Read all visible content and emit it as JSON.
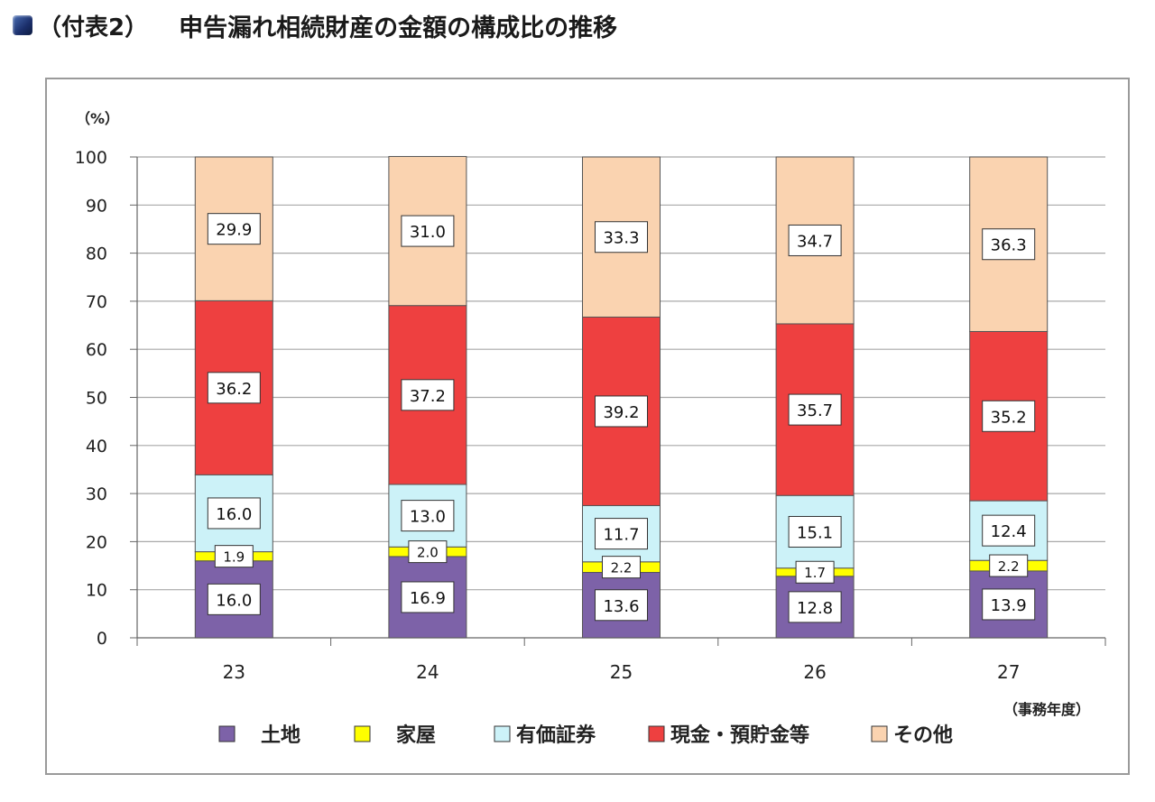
{
  "title": {
    "prefix": "（付表2）",
    "text": "申告漏れ相続財産の金額の構成比の推移"
  },
  "chart_data": {
    "type": "bar",
    "stacked": true,
    "title": "申告漏れ相続財産の金額の構成比の推移",
    "ylabel": "（%）",
    "xlabel": "（事務年度）",
    "ylim": [
      0,
      100
    ],
    "yticks": [
      0,
      10,
      20,
      30,
      40,
      50,
      60,
      70,
      80,
      90,
      100
    ],
    "grid": true,
    "legend_position": "bottom",
    "categories": [
      "23",
      "24",
      "25",
      "26",
      "27"
    ],
    "series": [
      {
        "name": "土地",
        "color": "#7d62a8",
        "values": [
          16.0,
          16.9,
          13.6,
          12.8,
          13.9
        ],
        "labels": [
          "16.0",
          "16.9",
          "13.6",
          "12.8",
          "13.9"
        ]
      },
      {
        "name": "家屋",
        "color": "#ffff00",
        "values": [
          1.9,
          2.0,
          2.2,
          1.7,
          2.2
        ],
        "labels": [
          "1.9",
          "2.0",
          "2.2",
          "1.7",
          "2.2"
        ]
      },
      {
        "name": "有価証券",
        "color": "#ccf2f8",
        "values": [
          16.0,
          13.0,
          11.7,
          15.1,
          12.4
        ],
        "labels": [
          "16.0",
          "13.0",
          "11.7",
          "15.1",
          "12.4"
        ]
      },
      {
        "name": "現金・預貯金等",
        "color": "#ee4040",
        "values": [
          36.2,
          37.2,
          39.2,
          35.7,
          35.2
        ],
        "labels": [
          "36.2",
          "37.2",
          "39.2",
          "35.7",
          "35.2"
        ]
      },
      {
        "name": "その他",
        "color": "#fad3b0",
        "values": [
          29.9,
          31.0,
          33.3,
          34.7,
          36.3
        ],
        "labels": [
          "29.9",
          "31.0",
          "33.3",
          "34.7",
          "36.3"
        ]
      }
    ]
  }
}
